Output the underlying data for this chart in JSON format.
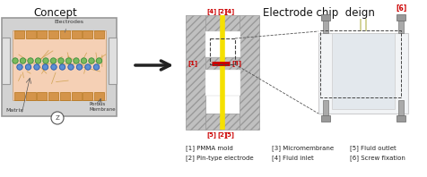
{
  "bg_color": "#ffffff",
  "title_concept": "Concept",
  "title_right": "Electrode chip  deign",
  "title_color": "#000000",
  "red_color": "#cc0000",
  "yellow_color": "#f5e000",
  "legend_data": [
    [
      "[1] PMMA mold",
      207,
      162
    ],
    [
      "[2] Pin-type electrode",
      207,
      173
    ],
    [
      "[3] Micromembrane",
      303,
      162
    ],
    [
      "[4] Fluid inlet",
      303,
      173
    ],
    [
      "[5] Fluid outlet",
      390,
      162
    ],
    [
      "[6] Screw fixation",
      390,
      173
    ]
  ],
  "gray_light": "#c8c8c8",
  "gray_med": "#b0b0b0",
  "gray_dark": "#888888",
  "pink_fill": "#f5d0b5",
  "orange_elec": "#d4944a",
  "orange_fiber": "#c8983c",
  "green_cell": "#7aba5d",
  "green_edge": "#3a8c3a",
  "blue_cell": "#5b8fd4",
  "blue_edge": "#2255aa",
  "hatch_gray": "#c0c0c0",
  "hatch_line": "#aaaaaa"
}
